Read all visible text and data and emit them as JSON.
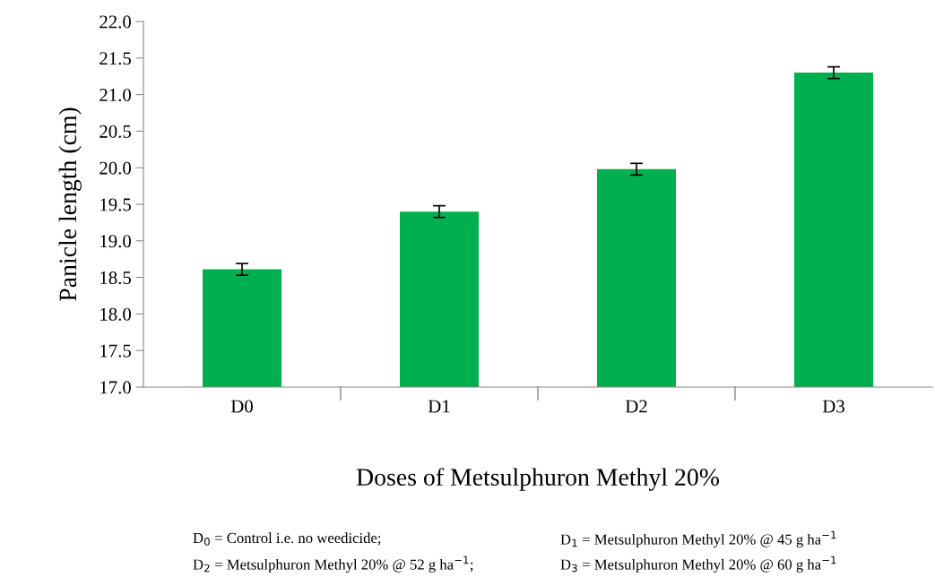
{
  "chart_data": {
    "type": "bar",
    "xlabel": "Doses of Metsulphuron Methyl 20%",
    "ylabel": "Panicle length (cm)",
    "categories": [
      "D0",
      "D1",
      "D2",
      "D3"
    ],
    "values": [
      18.61,
      19.4,
      19.98,
      21.3
    ],
    "errors": [
      0.08,
      0.08,
      0.08,
      0.08
    ],
    "color": "#00b050",
    "ylim": [
      17.0,
      22.0
    ],
    "yticks": [
      {
        "value": 17.0,
        "label": "17.0"
      },
      {
        "value": 17.5,
        "label": "17.5"
      },
      {
        "value": 18.0,
        "label": "18.0"
      },
      {
        "value": 18.5,
        "label": "18.5"
      },
      {
        "value": 19.0,
        "label": "19.0"
      },
      {
        "value": 19.5,
        "label": "19.5"
      },
      {
        "value": 20.0,
        "label": "20.0"
      },
      {
        "value": 20.5,
        "label": "20.5"
      },
      {
        "value": 21.0,
        "label": "21.0"
      },
      {
        "value": 21.5,
        "label": "21.5"
      },
      {
        "value": 22.0,
        "label": "22.0"
      }
    ],
    "grid": false,
    "legend": false,
    "annotations": [
      "D$_{0}$ = Control i.e. no weedicide;",
      "D$_{1}$ = Metsulphuron Methyl 20% @ 45 g ha$^{−1}$",
      "D$_{2}$ = Metsulphuron Methyl 20% @ 52 g ha$^{−1}$;",
      "D$_{3}$ = Metsulphuron Methyl 20% @ 60 g ha$^{−1}$"
    ]
  }
}
